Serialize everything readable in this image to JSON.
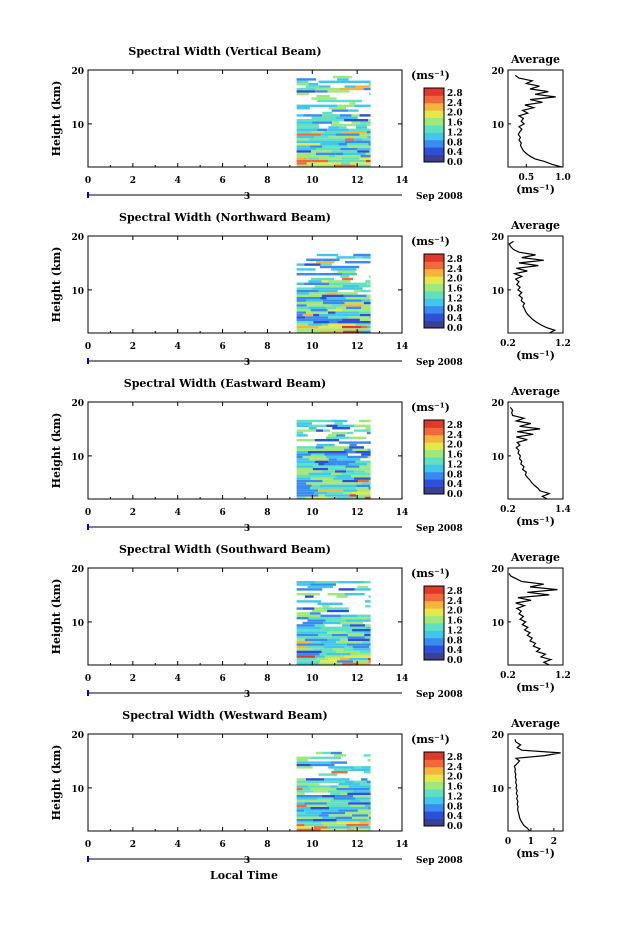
{
  "figure": {
    "x_axis_label": "Local Time",
    "date_label": "Sep 2008",
    "day_label": "3",
    "unit_label": "(ms⁻¹)",
    "y_axis_label": "Height (km)",
    "average_title": "Average"
  },
  "chart_data": [
    {
      "type": "heatmap",
      "title": "Spectral Width (Vertical Beam)",
      "xlabel": "Local Time",
      "ylabel": "Height (km)",
      "xlim": [
        0,
        14
      ],
      "ylim": [
        2,
        20
      ],
      "x_ticks": [
        "0",
        "2",
        "4",
        "6",
        "8",
        "10",
        "12",
        "14"
      ],
      "y_ticks": [
        "10",
        "20"
      ],
      "data_x_range": [
        9.3,
        12.6
      ],
      "data_top_height": 19.0,
      "colorbar": {
        "unit": "(ms⁻¹)",
        "ticks": [
          "2.8",
          "2.4",
          "2.0",
          "1.6",
          "1.2",
          "0.8",
          "0.4",
          "0.0"
        ],
        "range": [
          0,
          3.0
        ],
        "colors": [
          "#3a3f8f",
          "#2e4fd8",
          "#3a8bf0",
          "#3fc7ee",
          "#5fe0c0",
          "#9fe87a",
          "#e6e84a",
          "#f6b43a",
          "#f2683a",
          "#e0382a"
        ]
      },
      "average": {
        "title": "Average",
        "xlabel": "(ms⁻¹)",
        "xlim": [
          0.25,
          1.0
        ],
        "x_ticks": [
          "0.5",
          "1.0"
        ],
        "y_ticks": [
          "10",
          "20"
        ],
        "profile": [
          [
            0.98,
            2
          ],
          [
            0.85,
            2.5
          ],
          [
            0.75,
            3
          ],
          [
            0.62,
            3.5
          ],
          [
            0.55,
            4
          ],
          [
            0.5,
            4.5
          ],
          [
            0.46,
            5
          ],
          [
            0.44,
            5.5
          ],
          [
            0.42,
            6
          ],
          [
            0.43,
            6.5
          ],
          [
            0.4,
            7
          ],
          [
            0.42,
            7.5
          ],
          [
            0.39,
            8
          ],
          [
            0.41,
            8.5
          ],
          [
            0.44,
            9
          ],
          [
            0.4,
            9.5
          ],
          [
            0.47,
            10
          ],
          [
            0.43,
            10.5
          ],
          [
            0.46,
            11
          ],
          [
            0.4,
            11.5
          ],
          [
            0.52,
            12
          ],
          [
            0.45,
            12.5
          ],
          [
            0.6,
            13
          ],
          [
            0.48,
            13.5
          ],
          [
            0.72,
            14
          ],
          [
            0.55,
            14.5
          ],
          [
            0.9,
            15
          ],
          [
            0.62,
            15.5
          ],
          [
            0.8,
            16
          ],
          [
            0.55,
            16.5
          ],
          [
            0.68,
            17
          ],
          [
            0.5,
            17.5
          ],
          [
            0.58,
            18
          ],
          [
            0.4,
            18.5
          ],
          [
            0.35,
            19
          ]
        ]
      }
    },
    {
      "type": "heatmap",
      "title": "Spectral Width (Northward Beam)",
      "xlabel": "Local Time",
      "ylabel": "Height (km)",
      "xlim": [
        0,
        14
      ],
      "ylim": [
        2,
        20
      ],
      "x_ticks": [
        "0",
        "2",
        "4",
        "6",
        "8",
        "10",
        "12",
        "14"
      ],
      "y_ticks": [
        "10",
        "20"
      ],
      "data_x_range": [
        9.3,
        12.6
      ],
      "data_top_height": 17.0,
      "colorbar": {
        "unit": "(ms⁻¹)",
        "ticks": [
          "2.8",
          "2.4",
          "2.0",
          "1.6",
          "1.2",
          "0.8",
          "0.4",
          "0.0"
        ],
        "range": [
          0,
          3.0
        ],
        "colors": [
          "#3a3f8f",
          "#2e4fd8",
          "#3a8bf0",
          "#3fc7ee",
          "#5fe0c0",
          "#9fe87a",
          "#e6e84a",
          "#f6b43a",
          "#f2683a",
          "#e0382a"
        ]
      },
      "average": {
        "title": "Average",
        "xlabel": "(ms⁻¹)",
        "xlim": [
          0.2,
          1.2
        ],
        "x_ticks": [
          "0.2",
          "1.2"
        ],
        "y_ticks": [
          "10",
          "20"
        ],
        "profile": [
          [
            0.95,
            2
          ],
          [
            1.05,
            2.5
          ],
          [
            0.9,
            3
          ],
          [
            0.8,
            3.5
          ],
          [
            0.72,
            4
          ],
          [
            0.65,
            4.5
          ],
          [
            0.6,
            5
          ],
          [
            0.55,
            5.5
          ],
          [
            0.52,
            6
          ],
          [
            0.5,
            6.5
          ],
          [
            0.47,
            7
          ],
          [
            0.5,
            7.5
          ],
          [
            0.44,
            8
          ],
          [
            0.46,
            8.5
          ],
          [
            0.4,
            9
          ],
          [
            0.45,
            9.5
          ],
          [
            0.38,
            10
          ],
          [
            0.42,
            10.5
          ],
          [
            0.36,
            11
          ],
          [
            0.4,
            11.5
          ],
          [
            0.34,
            12
          ],
          [
            0.45,
            12.5
          ],
          [
            0.32,
            13
          ],
          [
            0.55,
            13.5
          ],
          [
            0.35,
            14
          ],
          [
            0.75,
            14.5
          ],
          [
            0.4,
            15
          ],
          [
            0.85,
            15.5
          ],
          [
            0.45,
            16
          ],
          [
            0.7,
            16.5
          ],
          [
            0.4,
            17
          ],
          [
            0.3,
            17.5
          ],
          [
            0.25,
            18
          ],
          [
            0.22,
            18.5
          ],
          [
            0.3,
            19
          ]
        ]
      }
    },
    {
      "type": "heatmap",
      "title": "Spectral Width (Eastward Beam)",
      "xlabel": "Local Time",
      "ylabel": "Height (km)",
      "xlim": [
        0,
        14
      ],
      "ylim": [
        2,
        20
      ],
      "x_ticks": [
        "0",
        "2",
        "4",
        "6",
        "8",
        "10",
        "12",
        "14"
      ],
      "y_ticks": [
        "10",
        "20"
      ],
      "data_x_range": [
        9.3,
        12.6
      ],
      "data_top_height": 17.0,
      "colorbar": {
        "unit": "(ms⁻¹)",
        "ticks": [
          "2.8",
          "2.4",
          "2.0",
          "1.6",
          "1.2",
          "0.8",
          "0.4",
          "0.0"
        ],
        "range": [
          0,
          3.0
        ],
        "colors": [
          "#3a3f8f",
          "#2e4fd8",
          "#3a8bf0",
          "#3fc7ee",
          "#5fe0c0",
          "#9fe87a",
          "#e6e84a",
          "#f6b43a",
          "#f2683a",
          "#e0382a"
        ]
      },
      "average": {
        "title": "Average",
        "xlabel": "(ms⁻¹)",
        "xlim": [
          0.2,
          1.4
        ],
        "x_ticks": [
          "0.2",
          "1.4"
        ],
        "y_ticks": [
          "10",
          "20"
        ],
        "profile": [
          [
            1.05,
            2
          ],
          [
            0.95,
            2.5
          ],
          [
            1.1,
            3
          ],
          [
            0.9,
            3.5
          ],
          [
            0.85,
            4
          ],
          [
            0.78,
            4.5
          ],
          [
            0.72,
            5
          ],
          [
            0.68,
            5.5
          ],
          [
            0.62,
            6
          ],
          [
            0.58,
            6.5
          ],
          [
            0.6,
            7
          ],
          [
            0.52,
            7.5
          ],
          [
            0.55,
            8
          ],
          [
            0.48,
            8.5
          ],
          [
            0.5,
            9
          ],
          [
            0.45,
            9.5
          ],
          [
            0.47,
            10
          ],
          [
            0.42,
            10.5
          ],
          [
            0.44,
            11
          ],
          [
            0.38,
            11.5
          ],
          [
            0.46,
            12
          ],
          [
            0.4,
            12.5
          ],
          [
            0.62,
            13
          ],
          [
            0.38,
            13.5
          ],
          [
            0.75,
            14
          ],
          [
            0.4,
            14.5
          ],
          [
            0.9,
            15
          ],
          [
            0.45,
            15.5
          ],
          [
            0.7,
            16
          ],
          [
            0.38,
            16.5
          ],
          [
            0.55,
            17
          ],
          [
            0.3,
            17.5
          ],
          [
            0.28,
            18
          ],
          [
            0.3,
            18.5
          ],
          [
            0.25,
            19
          ]
        ]
      }
    },
    {
      "type": "heatmap",
      "title": "Spectral Width (Southward Beam)",
      "xlabel": "Local Time",
      "ylabel": "Height (km)",
      "xlim": [
        0,
        14
      ],
      "ylim": [
        2,
        20
      ],
      "x_ticks": [
        "0",
        "2",
        "4",
        "6",
        "8",
        "10",
        "12",
        "14"
      ],
      "y_ticks": [
        "10",
        "20"
      ],
      "data_x_range": [
        9.3,
        12.6
      ],
      "data_top_height": 18.0,
      "colorbar": {
        "unit": "(ms⁻¹)",
        "ticks": [
          "2.8",
          "2.4",
          "2.0",
          "1.6",
          "1.2",
          "0.8",
          "0.4",
          "0.0"
        ],
        "range": [
          0,
          3.0
        ],
        "colors": [
          "#3a3f8f",
          "#2e4fd8",
          "#3a8bf0",
          "#3fc7ee",
          "#5fe0c0",
          "#9fe87a",
          "#e6e84a",
          "#f6b43a",
          "#f2683a",
          "#e0382a"
        ]
      },
      "average": {
        "title": "Average",
        "xlabel": "(ms⁻¹)",
        "xlim": [
          0.2,
          1.2
        ],
        "x_ticks": [
          "0.2",
          "1.2"
        ],
        "y_ticks": [
          "10",
          "20"
        ],
        "profile": [
          [
            0.95,
            2
          ],
          [
            0.85,
            2.5
          ],
          [
            0.98,
            3
          ],
          [
            0.8,
            3.5
          ],
          [
            0.88,
            4
          ],
          [
            0.72,
            4.5
          ],
          [
            0.78,
            5
          ],
          [
            0.66,
            5.5
          ],
          [
            0.7,
            6
          ],
          [
            0.6,
            6.5
          ],
          [
            0.64,
            7
          ],
          [
            0.55,
            7.5
          ],
          [
            0.6,
            8
          ],
          [
            0.5,
            8.5
          ],
          [
            0.56,
            9
          ],
          [
            0.46,
            9.5
          ],
          [
            0.52,
            10
          ],
          [
            0.42,
            10.5
          ],
          [
            0.48,
            11
          ],
          [
            0.4,
            11.5
          ],
          [
            0.44,
            12
          ],
          [
            0.36,
            12.5
          ],
          [
            0.5,
            13
          ],
          [
            0.34,
            13.5
          ],
          [
            0.62,
            14
          ],
          [
            0.38,
            14.5
          ],
          [
            0.95,
            15
          ],
          [
            0.55,
            15.5
          ],
          [
            1.1,
            16
          ],
          [
            0.6,
            16.5
          ],
          [
            0.85,
            17
          ],
          [
            0.45,
            17.5
          ],
          [
            0.35,
            18
          ],
          [
            0.25,
            18.5
          ],
          [
            0.22,
            19
          ]
        ]
      }
    },
    {
      "type": "heatmap",
      "title": "Spectral Width (Westward Beam)",
      "xlabel": "Local Time",
      "ylabel": "Height (km)",
      "xlim": [
        0,
        14
      ],
      "ylim": [
        2,
        20
      ],
      "x_ticks": [
        "0",
        "2",
        "4",
        "6",
        "8",
        "10",
        "12",
        "14"
      ],
      "y_ticks": [
        "10",
        "20"
      ],
      "data_x_range": [
        9.3,
        12.6
      ],
      "data_top_height": 17.5,
      "colorbar": {
        "unit": "(ms⁻¹)",
        "ticks": [
          "2.8",
          "2.4",
          "2.0",
          "1.6",
          "1.2",
          "0.8",
          "0.4",
          "0.0"
        ],
        "range": [
          0,
          3.0
        ],
        "colors": [
          "#3a3f8f",
          "#2e4fd8",
          "#3a8bf0",
          "#3fc7ee",
          "#5fe0c0",
          "#9fe87a",
          "#e6e84a",
          "#f6b43a",
          "#f2683a",
          "#e0382a"
        ]
      },
      "average": {
        "title": "Average",
        "xlabel": "(ms⁻¹)",
        "xlim": [
          0,
          2.4
        ],
        "x_ticks": [
          "0",
          "1",
          "2"
        ],
        "y_ticks": [
          "10",
          "20"
        ],
        "profile": [
          [
            0.95,
            2
          ],
          [
            0.85,
            2.5
          ],
          [
            0.7,
            3
          ],
          [
            0.62,
            3.5
          ],
          [
            0.55,
            4
          ],
          [
            0.5,
            4.5
          ],
          [
            0.48,
            5
          ],
          [
            0.45,
            5.5
          ],
          [
            0.42,
            6
          ],
          [
            0.44,
            6.5
          ],
          [
            0.4,
            7
          ],
          [
            0.43,
            7.5
          ],
          [
            0.38,
            8
          ],
          [
            0.42,
            8.5
          ],
          [
            0.36,
            9
          ],
          [
            0.4,
            9.5
          ],
          [
            0.35,
            10
          ],
          [
            0.38,
            10.5
          ],
          [
            0.33,
            11
          ],
          [
            0.36,
            11.5
          ],
          [
            0.32,
            12
          ],
          [
            0.34,
            12.5
          ],
          [
            0.3,
            13
          ],
          [
            0.32,
            13.5
          ],
          [
            0.28,
            14
          ],
          [
            0.4,
            14.5
          ],
          [
            0.5,
            15
          ],
          [
            0.35,
            15.5
          ],
          [
            1.6,
            16
          ],
          [
            2.3,
            16.5
          ],
          [
            0.6,
            17
          ],
          [
            0.4,
            17.5
          ],
          [
            0.55,
            18
          ],
          [
            0.35,
            18.5
          ],
          [
            0.3,
            19
          ]
        ]
      }
    }
  ]
}
